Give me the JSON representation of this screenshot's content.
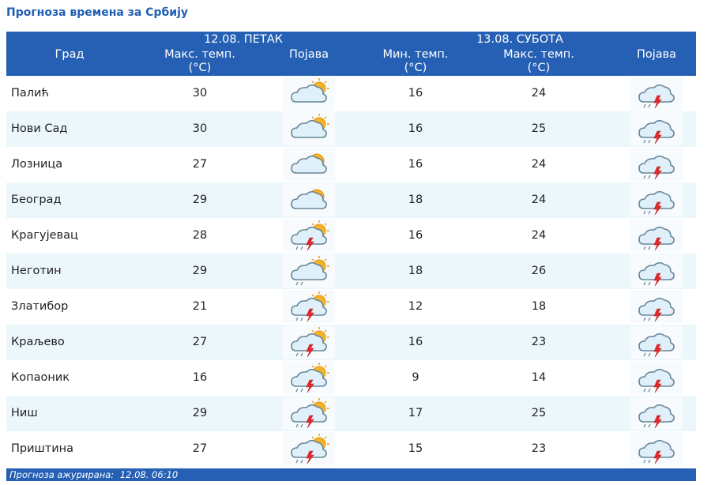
{
  "title": "Прогноза времена за Србију",
  "header": {
    "city": "Град",
    "day1": "12.08. ПЕТАК",
    "day2": "13.08. СУБОТА",
    "max_l1": "Макс. темп.",
    "min_l1": "Мин. темп.",
    "unit": "(°C)",
    "phen": "Појава"
  },
  "rows": [
    {
      "city": "Палић",
      "d1_max": "30",
      "d1_icon": "sun-cloud-icon",
      "d2_min": "16",
      "d2_max": "24",
      "d2_icon": "thunderstorm-icon"
    },
    {
      "city": "Нови Сад",
      "d1_max": "30",
      "d1_icon": "sun-cloud-icon",
      "d2_min": "16",
      "d2_max": "25",
      "d2_icon": "thunderstorm-icon"
    },
    {
      "city": "Лозница",
      "d1_max": "27",
      "d1_icon": "cloud-sun-icon",
      "d2_min": "16",
      "d2_max": "24",
      "d2_icon": "thunderstorm-icon"
    },
    {
      "city": "Београд",
      "d1_max": "29",
      "d1_icon": "cloud-sun-icon",
      "d2_min": "18",
      "d2_max": "24",
      "d2_icon": "thunderstorm-icon"
    },
    {
      "city": "Крагујевац",
      "d1_max": "28",
      "d1_icon": "sun-thunderstorm-icon",
      "d2_min": "16",
      "d2_max": "24",
      "d2_icon": "thunderstorm-icon"
    },
    {
      "city": "Неготин",
      "d1_max": "29",
      "d1_icon": "sun-cloud-rain-icon",
      "d2_min": "18",
      "d2_max": "26",
      "d2_icon": "thunderstorm-icon"
    },
    {
      "city": "Златибор",
      "d1_max": "21",
      "d1_icon": "sun-thunderstorm-icon",
      "d2_min": "12",
      "d2_max": "18",
      "d2_icon": "thunderstorm-icon"
    },
    {
      "city": "Краљево",
      "d1_max": "27",
      "d1_icon": "sun-thunderstorm-icon",
      "d2_min": "16",
      "d2_max": "23",
      "d2_icon": "thunderstorm-icon"
    },
    {
      "city": "Копаоник",
      "d1_max": "16",
      "d1_icon": "sun-thunderstorm-icon",
      "d2_min": "9",
      "d2_max": "14",
      "d2_icon": "thunderstorm-icon"
    },
    {
      "city": "Ниш",
      "d1_max": "29",
      "d1_icon": "sun-thunderstorm-icon",
      "d2_min": "17",
      "d2_max": "25",
      "d2_icon": "thunderstorm-icon"
    },
    {
      "city": "Приштина",
      "d1_max": "27",
      "d1_icon": "sun-thunderstorm-icon",
      "d2_min": "15",
      "d2_max": "23",
      "d2_icon": "thunderstorm-icon"
    }
  ],
  "footer": {
    "label": "Прогноза ажурирана:",
    "value": "12.08. 06:10"
  },
  "colors": {
    "header_bg": "#2560b4",
    "alt_row": "#ecf7fc",
    "title": "#1f5fb3"
  }
}
